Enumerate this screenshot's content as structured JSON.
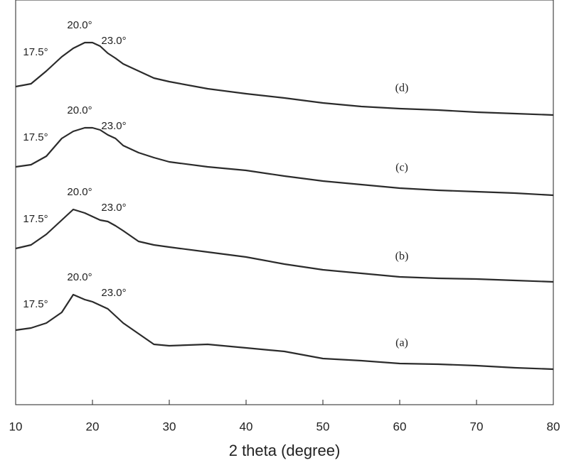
{
  "chart_data": {
    "type": "line",
    "xlabel": "2 theta (degree)",
    "x": [
      10,
      12,
      14,
      16,
      17.5,
      19,
      20,
      21,
      22,
      23,
      24,
      26,
      28,
      30,
      35,
      40,
      45,
      50,
      55,
      60,
      65,
      70,
      75,
      80
    ],
    "xlim": [
      10,
      80
    ],
    "xticks": [
      10,
      20,
      30,
      40,
      50,
      60,
      70,
      80
    ],
    "ylim": [
      0,
      570
    ],
    "series": [
      {
        "name": "(a)",
        "color": "#2b2b2b",
        "peak_labels": [
          "17.5°",
          "20.0°",
          "23.0°"
        ],
        "values": [
          105,
          108,
          115,
          130,
          155,
          148,
          145,
          140,
          135,
          125,
          115,
          100,
          85,
          83,
          85,
          80,
          75,
          65,
          62,
          58,
          57,
          55,
          52,
          50
        ]
      },
      {
        "name": "(b)",
        "color": "#2b2b2b",
        "peak_labels": [
          "17.5°",
          "20.0°",
          "23.0°"
        ],
        "values": [
          220,
          225,
          240,
          260,
          275,
          270,
          265,
          260,
          258,
          252,
          245,
          230,
          225,
          222,
          215,
          208,
          198,
          190,
          185,
          180,
          178,
          177,
          175,
          173
        ]
      },
      {
        "name": "(c)",
        "color": "#2b2b2b",
        "peak_labels": [
          "17.5°",
          "20.0°",
          "23.0°"
        ],
        "values": [
          335,
          338,
          350,
          375,
          385,
          390,
          390,
          387,
          380,
          375,
          365,
          355,
          348,
          342,
          335,
          330,
          322,
          315,
          310,
          305,
          302,
          300,
          298,
          295
        ]
      },
      {
        "name": "(d)",
        "color": "#2b2b2b",
        "peak_labels": [
          "17.5°",
          "20.0°",
          "23.0°"
        ],
        "values": [
          448,
          452,
          470,
          490,
          502,
          510,
          510,
          505,
          495,
          488,
          480,
          470,
          460,
          455,
          445,
          438,
          432,
          425,
          420,
          417,
          415,
          412,
          410,
          408
        ]
      }
    ]
  }
}
